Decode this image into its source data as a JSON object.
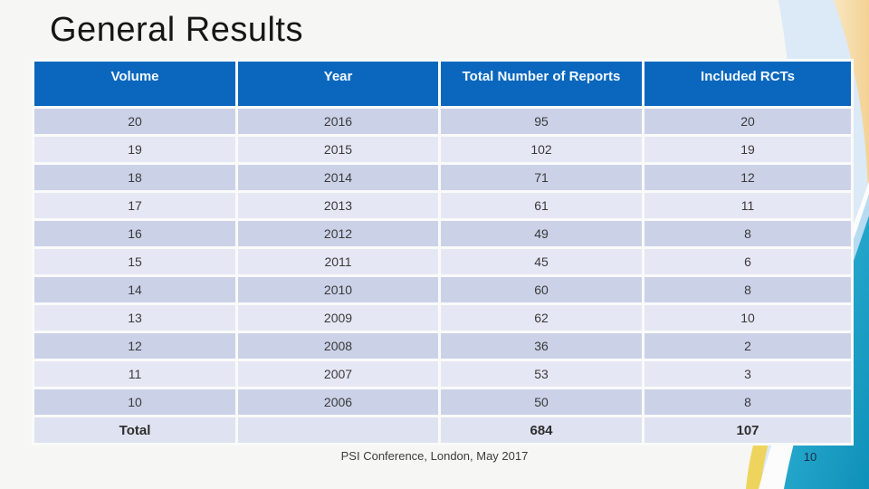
{
  "slide": {
    "title": "General Results"
  },
  "table": {
    "columns": [
      "Volume",
      "Year",
      "Total Number of Reports",
      "Included RCTs"
    ],
    "rows": [
      [
        "20",
        "2016",
        "95",
        "20"
      ],
      [
        "19",
        "2015",
        "102",
        "19"
      ],
      [
        "18",
        "2014",
        "71",
        "12"
      ],
      [
        "17",
        "2013",
        "61",
        "11"
      ],
      [
        "16",
        "2012",
        "49",
        "8"
      ],
      [
        "15",
        "2011",
        "45",
        "6"
      ],
      [
        "14",
        "2010",
        "60",
        "8"
      ],
      [
        "13",
        "2009",
        "62",
        "10"
      ],
      [
        "12",
        "2008",
        "36",
        "2"
      ],
      [
        "11",
        "2007",
        "53",
        "3"
      ],
      [
        "10",
        "2006",
        "50",
        "8"
      ]
    ],
    "total_row": {
      "label": "Total",
      "year": "",
      "reports": "684",
      "rcts": "107"
    }
  },
  "footer": {
    "text": "PSI Conference, London, May 2017",
    "page_number": "10"
  },
  "colors": {
    "header_bg": "#0a67bd",
    "header_text": "#f4f9ff",
    "row_dark": "#cbd2e8",
    "row_light": "#e5e8f4",
    "total_row_bg": "#dfe3f1",
    "accent_pale_blue": "#dce9f6",
    "accent_tan": "#f5d9a2",
    "accent_yellow": "#eed45c",
    "accent_light_blue": "#b7dbf1",
    "accent_teal": "#14a0c6"
  }
}
